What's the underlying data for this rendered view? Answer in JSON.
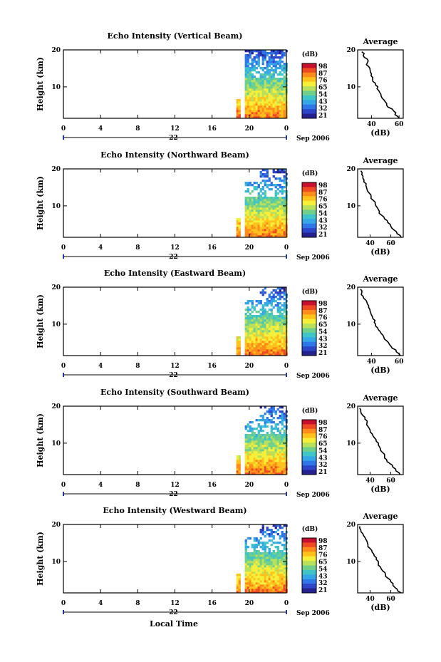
{
  "figure": {
    "colorbar_unit": "(dB)",
    "colorbar_ticks": [
      "98",
      "87",
      "76",
      "65",
      "54",
      "43",
      "32",
      "21"
    ],
    "colorbar_colors": [
      "#c8102e",
      "#f04a22",
      "#ff8c1a",
      "#ffc21a",
      "#f6ef3a",
      "#b9e05a",
      "#6fd08c",
      "#3fc4c8",
      "#35a6e6",
      "#2f76e8",
      "#2d45c8",
      "#25228f"
    ],
    "xlabel": "Local Time",
    "date_prefix": "Sep",
    "date_year": "2006",
    "date_day": "22",
    "ylabel": "Height (km)"
  },
  "chart_data": [
    {
      "type": "heatmap",
      "title": "Echo Intensity (Vertical Beam)",
      "xlabel": "Local Time",
      "ylabel": "Height (km)",
      "x_ticks": [
        "0",
        "4",
        "8",
        "12",
        "16",
        "20",
        "0"
      ],
      "y_ticks": [
        "10",
        "20"
      ],
      "xlim": [
        0,
        24
      ],
      "ylim": [
        1.5,
        20
      ],
      "data_window_hours": [
        18.6,
        24
      ],
      "gap_hours": [
        19.0,
        19.5
      ],
      "colorbar": {
        "unit": "(dB)",
        "min": 21,
        "max": 98,
        "ticks": [
          98,
          87,
          76,
          65,
          54,
          43,
          32,
          21
        ]
      },
      "average_profile": {
        "title": "Average",
        "xlabel": "(dB)",
        "x_ticks": [
          "40",
          "60"
        ],
        "xlim": [
          30,
          63
        ],
        "height_km": [
          1.5,
          2.5,
          3.5,
          4.5,
          5.5,
          6.5,
          7.5,
          8.5,
          9.5,
          10.5,
          11.5,
          12.5,
          13.5,
          14.5,
          15.5,
          16.5,
          17.5,
          18.5,
          19.5
        ],
        "value_db": [
          60,
          57,
          56,
          52,
          51,
          49,
          47,
          46,
          44,
          43,
          41,
          41,
          40,
          39,
          38,
          37,
          37,
          34,
          33
        ]
      }
    },
    {
      "type": "heatmap",
      "title": "Echo Intensity (Northward Beam)",
      "xlabel": "Local Time",
      "ylabel": "Height (km)",
      "x_ticks": [
        "0",
        "4",
        "8",
        "12",
        "16",
        "20",
        "0"
      ],
      "y_ticks": [
        "10",
        "20"
      ],
      "xlim": [
        0,
        24
      ],
      "ylim": [
        1.5,
        20
      ],
      "data_window_hours": [
        18.6,
        24
      ],
      "gap_hours": [
        19.0,
        19.5
      ],
      "colorbar": {
        "unit": "(dB)",
        "min": 21,
        "max": 98,
        "ticks": [
          98,
          87,
          76,
          65,
          54,
          43,
          32,
          21
        ]
      },
      "average_profile": {
        "title": "Average",
        "xlabel": "(dB)",
        "x_ticks": [
          "40",
          "60"
        ],
        "xlim": [
          28,
          72
        ],
        "height_km": [
          1.5,
          2.5,
          3.5,
          4.5,
          5.5,
          6.5,
          7.5,
          8.5,
          9.5,
          10.5,
          11.5,
          12.5,
          13.5,
          14.5,
          15.5,
          16.5,
          17.5,
          18.5,
          19.5
        ],
        "value_db": [
          70,
          66,
          63,
          60,
          57,
          54,
          51,
          49,
          47,
          45,
          43,
          41,
          39,
          37,
          36,
          34,
          33,
          32,
          31
        ]
      }
    },
    {
      "type": "heatmap",
      "title": "Echo Intensity (Eastward Beam)",
      "xlabel": "Local Time",
      "ylabel": "Height (km)",
      "x_ticks": [
        "0",
        "4",
        "8",
        "12",
        "16",
        "20",
        "0"
      ],
      "y_ticks": [
        "10",
        "20"
      ],
      "xlim": [
        0,
        24
      ],
      "ylim": [
        1.5,
        20
      ],
      "data_window_hours": [
        18.6,
        24
      ],
      "gap_hours": [
        19.0,
        19.5
      ],
      "colorbar": {
        "unit": "(dB)",
        "min": 21,
        "max": 98,
        "ticks": [
          98,
          87,
          76,
          65,
          54,
          43,
          32,
          21
        ]
      },
      "average_profile": {
        "title": "Average",
        "xlabel": "(dB)",
        "x_ticks": [
          "40",
          "60"
        ],
        "xlim": [
          30,
          63
        ],
        "height_km": [
          1.5,
          2.5,
          3.5,
          4.5,
          5.5,
          6.5,
          7.5,
          8.5,
          9.5,
          10.5,
          11.5,
          12.5,
          13.5,
          14.5,
          15.5,
          16.5,
          17.5,
          18.5,
          19.5
        ],
        "value_db": [
          61,
          58,
          55,
          53,
          51,
          49,
          47,
          45,
          43,
          42,
          41,
          40,
          39,
          38,
          37,
          36,
          34,
          33,
          32
        ]
      }
    },
    {
      "type": "heatmap",
      "title": "Echo Intensity (Southward Beam)",
      "xlabel": "Local Time",
      "ylabel": "Height (km)",
      "x_ticks": [
        "0",
        "4",
        "8",
        "12",
        "16",
        "20",
        "0"
      ],
      "y_ticks": [
        "10",
        "20"
      ],
      "xlim": [
        0,
        24
      ],
      "ylim": [
        1.5,
        20
      ],
      "data_window_hours": [
        18.6,
        24
      ],
      "gap_hours": [
        19.0,
        19.5
      ],
      "colorbar": {
        "unit": "(dB)",
        "min": 21,
        "max": 98,
        "ticks": [
          98,
          87,
          76,
          65,
          54,
          43,
          32,
          21
        ]
      },
      "average_profile": {
        "title": "Average",
        "xlabel": "(dB)",
        "x_ticks": [
          "40",
          "60"
        ],
        "xlim": [
          28,
          72
        ],
        "height_km": [
          1.5,
          2.5,
          3.5,
          4.5,
          5.5,
          6.5,
          7.5,
          8.5,
          9.5,
          10.5,
          11.5,
          12.5,
          13.5,
          14.5,
          15.5,
          16.5,
          17.5,
          18.5,
          19.5
        ],
        "value_db": [
          69,
          65,
          62,
          59,
          56,
          54,
          52,
          50,
          48,
          46,
          44,
          42,
          40,
          38,
          37,
          35,
          33,
          31,
          30
        ]
      }
    },
    {
      "type": "heatmap",
      "title": "Echo Intensity (Westward Beam)",
      "xlabel": "Local Time",
      "ylabel": "Height (km)",
      "x_ticks": [
        "0",
        "4",
        "8",
        "12",
        "16",
        "20",
        "0"
      ],
      "y_ticks": [
        "10",
        "20"
      ],
      "xlim": [
        0,
        24
      ],
      "ylim": [
        1.5,
        20
      ],
      "data_window_hours": [
        18.6,
        24
      ],
      "gap_hours": [
        19.0,
        19.5
      ],
      "colorbar": {
        "unit": "(dB)",
        "min": 21,
        "max": 98,
        "ticks": [
          98,
          87,
          76,
          65,
          54,
          43,
          32,
          21
        ]
      },
      "average_profile": {
        "title": "Average",
        "xlabel": "(dB)",
        "x_ticks": [
          "40",
          "60"
        ],
        "xlim": [
          28,
          72
        ],
        "height_km": [
          1.5,
          2.5,
          3.5,
          4.5,
          5.5,
          6.5,
          7.5,
          8.5,
          9.5,
          10.5,
          11.5,
          12.5,
          13.5,
          14.5,
          15.5,
          16.5,
          17.5,
          18.5,
          19.5
        ],
        "value_db": [
          70,
          66,
          62,
          60,
          57,
          55,
          52,
          50,
          48,
          46,
          44,
          42,
          40,
          38,
          37,
          35,
          33,
          31,
          30
        ]
      }
    }
  ]
}
